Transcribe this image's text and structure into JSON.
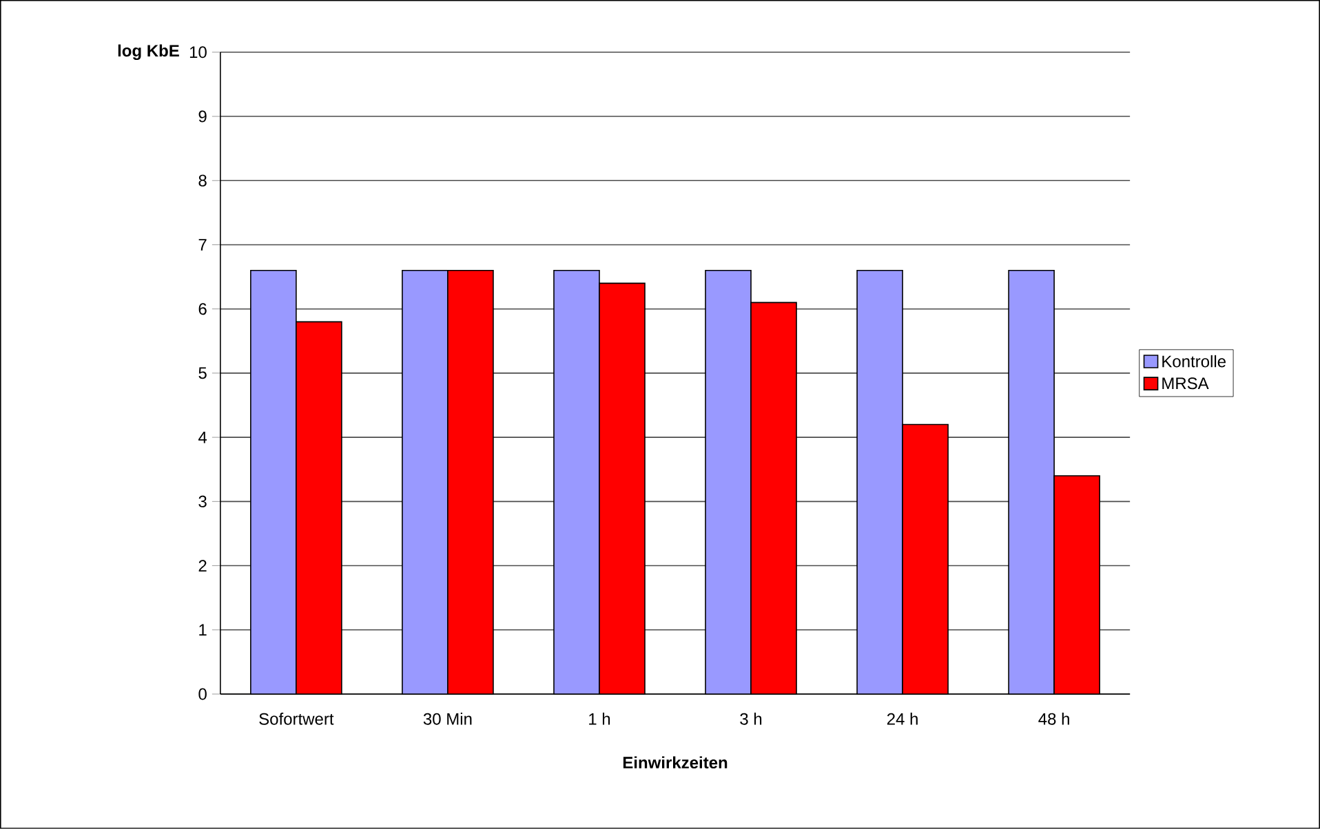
{
  "chart_data": {
    "type": "bar",
    "xlabel": "Einwirkzeiten",
    "ylabel": "log KbE",
    "categories": [
      "Sofortwert",
      "30 Min",
      "1 h",
      "3 h",
      "24 h",
      "48 h"
    ],
    "series": [
      {
        "name": "Kontrolle",
        "color": "#9999ff",
        "values": [
          6.6,
          6.6,
          6.6,
          6.6,
          6.6,
          6.6
        ]
      },
      {
        "name": "MRSA",
        "color": "#ff0000",
        "values": [
          5.8,
          6.6,
          6.4,
          6.1,
          4.2,
          3.4
        ]
      }
    ],
    "ylim": [
      0,
      10
    ],
    "yticks": [
      0,
      1,
      2,
      3,
      4,
      5,
      6,
      7,
      8,
      9,
      10
    ],
    "grid": "y",
    "legend": "right"
  }
}
